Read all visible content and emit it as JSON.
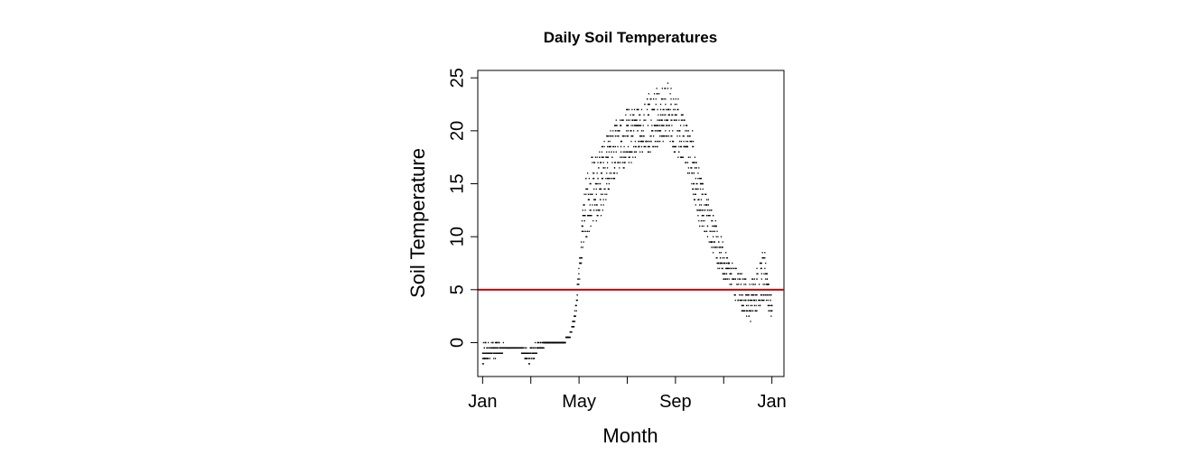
{
  "chart_data": {
    "type": "scatter",
    "title": "Daily Soil Temperatures",
    "xlabel": "Month",
    "ylabel": "Soil Temperature",
    "x_ticks": [
      {
        "month": 1,
        "label": "Jan"
      },
      {
        "month": 3,
        "label": ""
      },
      {
        "month": 5,
        "label": "May"
      },
      {
        "month": 7,
        "label": ""
      },
      {
        "month": 9,
        "label": "Sep"
      },
      {
        "month": 11,
        "label": ""
      },
      {
        "month": 13,
        "label": "Jan"
      }
    ],
    "y_ticks": [
      0,
      5,
      10,
      15,
      20,
      25
    ],
    "xlim": [
      0.8,
      13.5
    ],
    "ylim": [
      -3.2,
      25.7
    ],
    "grid": false,
    "reference_line": {
      "y": 5,
      "color": "#cc0000"
    },
    "point_color": "#000000",
    "series_profile": {
      "x": [
        1.0,
        1.3,
        1.6,
        2.0,
        2.5,
        2.9,
        3.3,
        3.7,
        4.0,
        4.3,
        4.6,
        4.85,
        5.0,
        5.2,
        5.5,
        5.9,
        6.3,
        6.7,
        7.1,
        7.5,
        7.9,
        8.3,
        8.7,
        8.9,
        9.1,
        9.4,
        9.7,
        10.0,
        10.3,
        10.6,
        10.9,
        11.2,
        11.5,
        11.8,
        12.1,
        12.4,
        12.7,
        13.0
      ],
      "y_min": [
        -2.0,
        -1.5,
        -1.2,
        -0.5,
        -0.5,
        -2.0,
        -1.0,
        0.0,
        0.0,
        0.0,
        0.5,
        2.0,
        5.0,
        9.0,
        11.0,
        12.0,
        15.0,
        16.0,
        17.0,
        18.0,
        18.0,
        18.5,
        19.0,
        18.0,
        17.5,
        17.0,
        14.0,
        11.0,
        10.0,
        8.0,
        6.0,
        5.5,
        4.0,
        3.0,
        2.0,
        3.0,
        4.0,
        2.0
      ],
      "y_max": [
        0.0,
        0.0,
        0.0,
        -0.3,
        -0.3,
        -0.5,
        0.0,
        0.0,
        0.0,
        0.0,
        0.5,
        3.5,
        7.5,
        15.0,
        17.5,
        18.5,
        20.0,
        21.5,
        22.5,
        22.0,
        23.5,
        24.0,
        24.5,
        23.5,
        23.0,
        21.0,
        20.0,
        16.0,
        14.0,
        12.0,
        10.0,
        8.0,
        7.0,
        6.5,
        5.5,
        7.0,
        9.0,
        4.0
      ]
    }
  }
}
